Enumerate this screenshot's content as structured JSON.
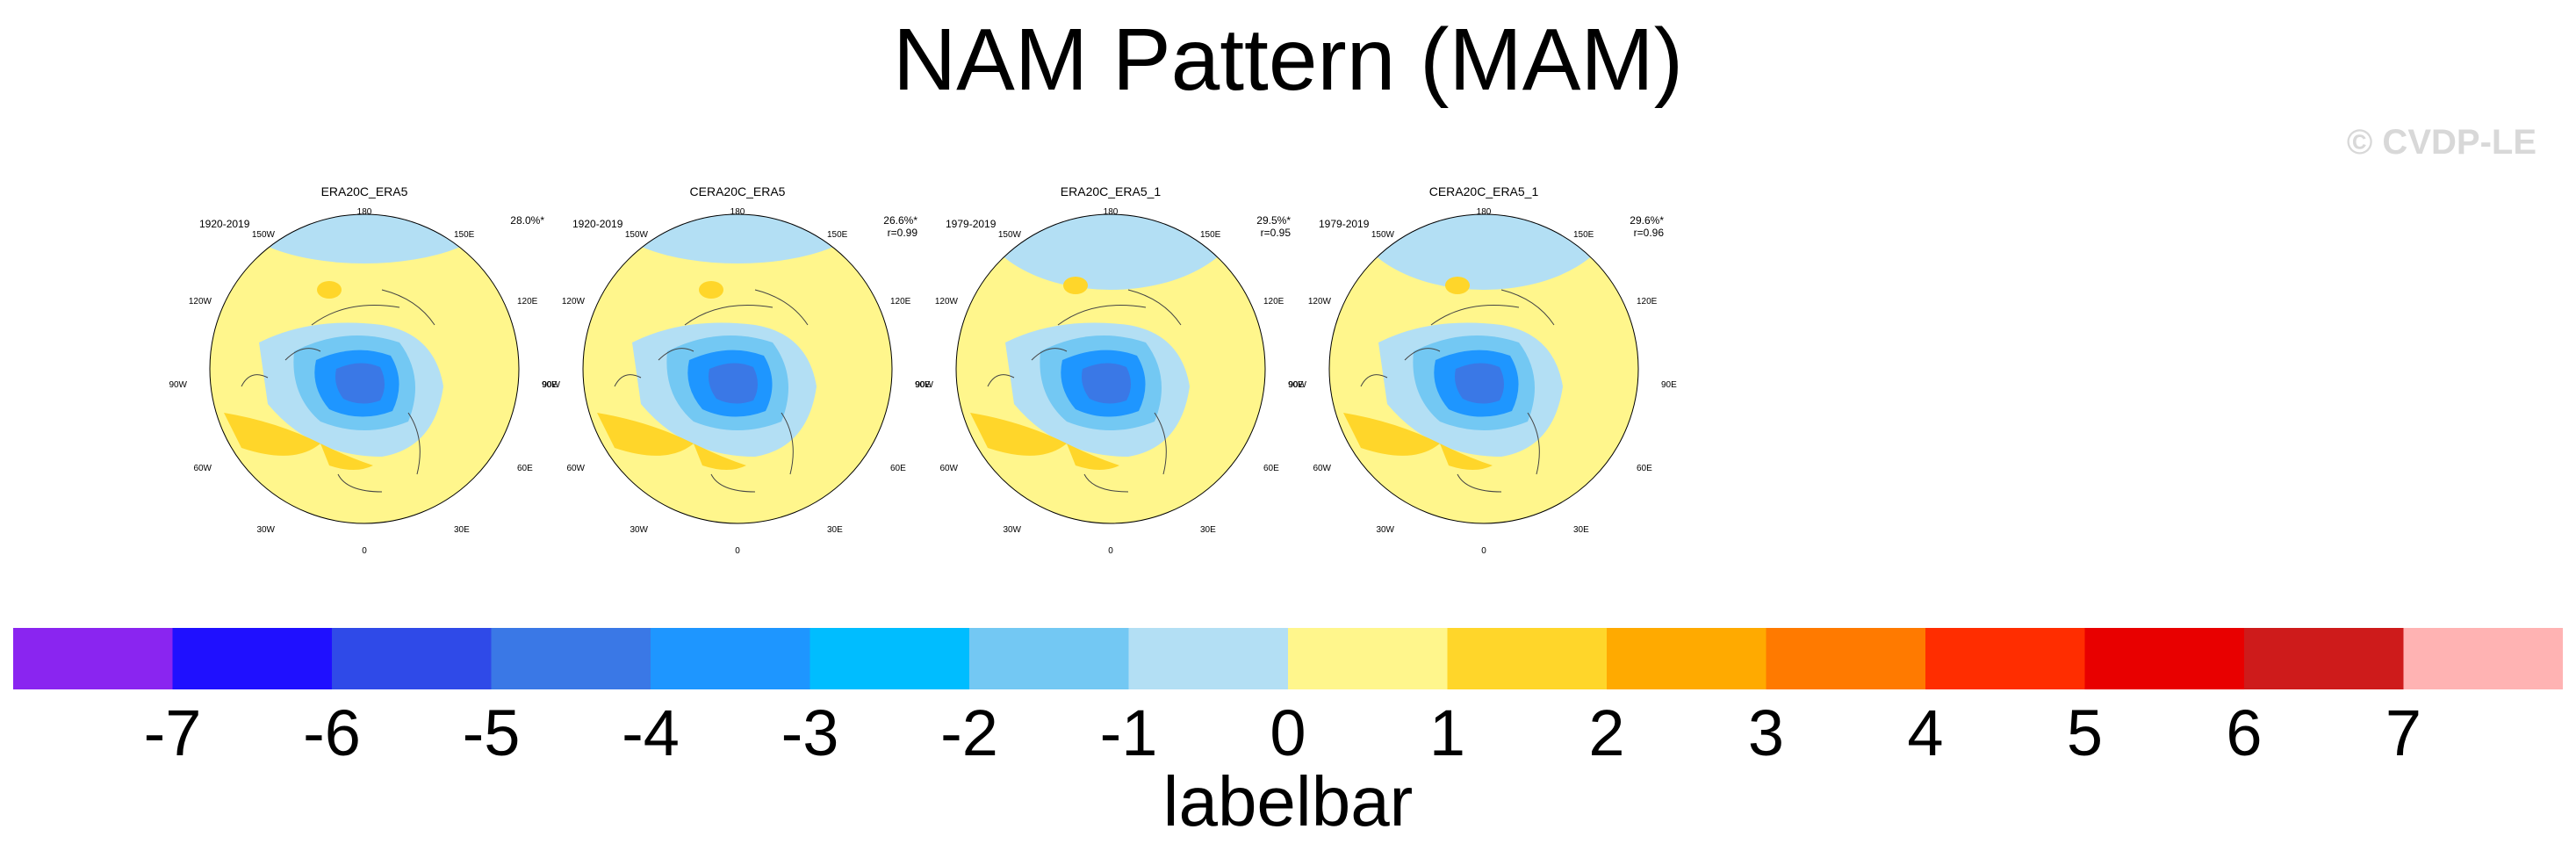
{
  "title": "NAM Pattern (MAM)",
  "watermark": "© CVDP-LE",
  "panels": [
    {
      "title": "ERA20C_ERA5",
      "years": "1920-2019",
      "pct": "28.0%*",
      "r": ""
    },
    {
      "title": "CERA20C_ERA5",
      "years": "1920-2019",
      "pct": "26.6%*",
      "r": "r=0.99"
    },
    {
      "title": "ERA20C_ERA5_1",
      "years": "1979-2019",
      "pct": "29.5%*",
      "r": "r=0.95"
    },
    {
      "title": "CERA20C_ERA5_1",
      "years": "1979-2019",
      "pct": "29.6%*",
      "r": "r=0.96"
    }
  ],
  "lon_labels": {
    "top": "180",
    "tl": "150W",
    "tr": "150E",
    "ul": "120W",
    "ur": "120E",
    "ml": "90W",
    "mr": "90E",
    "ll": "60W",
    "lr": "60E",
    "bl": "30W",
    "br": "30E",
    "bottom": "0"
  },
  "labelbar": {
    "title": "labelbar",
    "colors": [
      "#8a25f0",
      "#1f10ff",
      "#2f4ae8",
      "#3a78e6",
      "#1e96ff",
      "#00bdff",
      "#73c8f3",
      "#b3dff4",
      "#fff68c",
      "#ffd62a",
      "#ffaa00",
      "#ff7a00",
      "#ff2d00",
      "#e80000",
      "#ce1b1b",
      "#ffb3b3"
    ],
    "ticks": [
      "-7",
      "-6",
      "-5",
      "-4",
      "-3",
      "-2",
      "-1",
      "0",
      "1",
      "2",
      "3",
      "4",
      "5",
      "6",
      "7"
    ]
  }
}
